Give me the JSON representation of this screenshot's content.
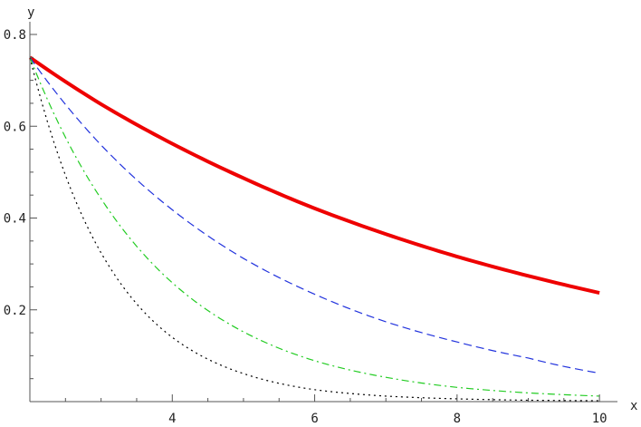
{
  "chart_data": {
    "type": "line",
    "xlabel": "x",
    "ylabel": "y",
    "xlim": [
      2,
      10.1
    ],
    "ylim": [
      0,
      0.8
    ],
    "x_ticks": [
      4,
      6,
      8,
      10
    ],
    "x_tick_labels": [
      "4",
      "6",
      "8",
      "10"
    ],
    "y_ticks": [
      0.2,
      0.4,
      0.6,
      0.8
    ],
    "y_tick_labels": [
      "0.2",
      "0.4",
      "0.6",
      "0.8"
    ],
    "grid": false,
    "series": [
      {
        "color": "#ee0000",
        "style": "solid",
        "x": [
          2,
          3,
          4,
          5,
          6,
          7,
          8,
          9,
          10
        ],
        "y": [
          0.75,
          0.648,
          0.562,
          0.487,
          0.421,
          0.365,
          0.316,
          0.274,
          0.237
        ]
      },
      {
        "color": "#2233dd",
        "style": "dashed",
        "x": [
          2,
          3,
          4,
          5,
          6,
          7,
          8,
          9,
          10
        ],
        "y": [
          0.75,
          0.559,
          0.418,
          0.312,
          0.234,
          0.174,
          0.13,
          0.095,
          0.062
        ]
      },
      {
        "color": "#22cc22",
        "style": "dashdot",
        "x": [
          2,
          3,
          4,
          5,
          6,
          7,
          8,
          9,
          10
        ],
        "y": [
          0.75,
          0.442,
          0.259,
          0.152,
          0.089,
          0.053,
          0.031,
          0.019,
          0.012
        ]
      },
      {
        "color": "#000000",
        "style": "dotted",
        "x": [
          2,
          3,
          4,
          5,
          6,
          7,
          8,
          9,
          10
        ],
        "y": [
          0.75,
          0.324,
          0.14,
          0.061,
          0.026,
          0.012,
          0.006,
          0.003,
          0.002
        ]
      }
    ]
  }
}
